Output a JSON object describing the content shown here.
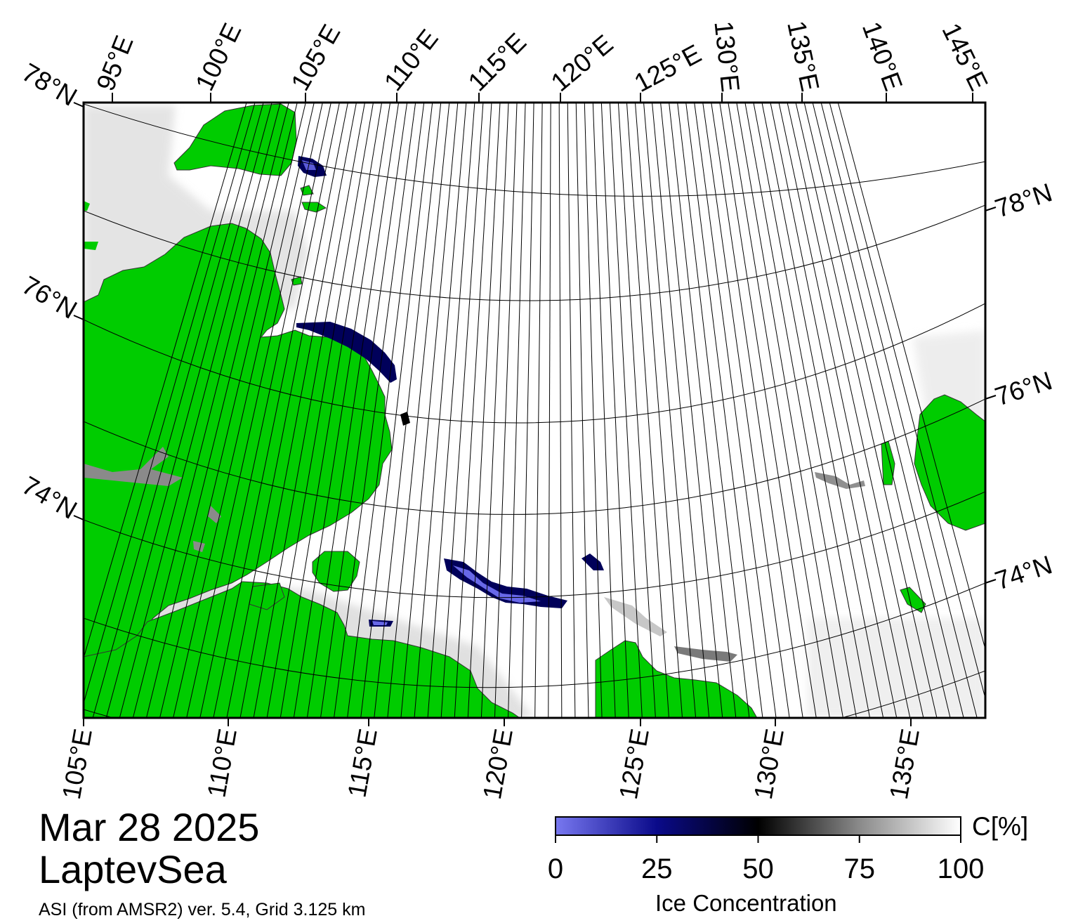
{
  "map": {
    "top_lon_labels": [
      "95°E",
      "100°E",
      "105°E",
      "110°E",
      "115°E",
      "120°E",
      "125°E",
      "130°E",
      "135°E",
      "140°E",
      "145°E"
    ],
    "bottom_lon_labels": [
      "105°E",
      "110°E",
      "115°E",
      "120°E",
      "125°E",
      "130°E",
      "135°E"
    ],
    "left_lat_labels": [
      "78°N",
      "76°N",
      "74°N"
    ],
    "right_lat_labels": [
      "78°N",
      "76°N",
      "74°N"
    ]
  },
  "colors": {
    "land": "#00cc00",
    "land_ice": "#888888",
    "open_water_low": "#7878f0",
    "mid": "#00005a",
    "dark": "#000000",
    "full_ice": "#ffffff"
  },
  "info": {
    "date": "Mar 28 2025",
    "region": "LaptevSea",
    "source": "ASI (from AMSR2) ver. 5.4,  Grid 3.125 km"
  },
  "colorbar": {
    "ticks": [
      "0",
      "25",
      "50",
      "75",
      "100"
    ],
    "unit": "C[%]",
    "title": "Ice Concentration"
  }
}
